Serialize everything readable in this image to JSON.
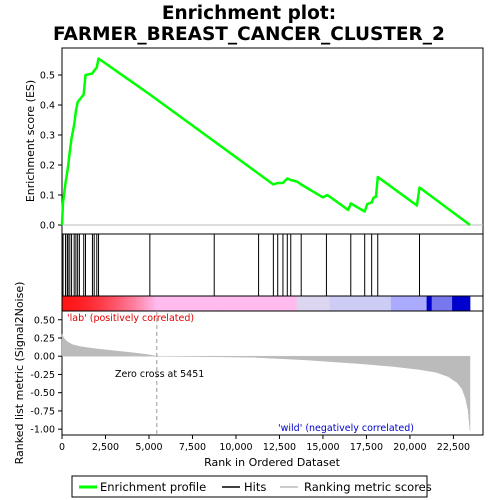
{
  "chart_data": {
    "type": "line",
    "title_lines": [
      "Enrichment plot:",
      "FARMER_BREAST_CANCER_CLUSTER_2"
    ],
    "xlabel": "Rank in Ordered Dataset",
    "xlim": [
      0,
      24200
    ],
    "x_ticks": [
      0,
      2500,
      5000,
      7500,
      10000,
      12500,
      15000,
      17500,
      20000,
      22500
    ],
    "x_tick_labels": [
      "0",
      "2,500",
      "5,000",
      "7,500",
      "10,000",
      "12,500",
      "15,000",
      "17,500",
      "20,000",
      "22,500"
    ],
    "top_panel": {
      "ylabel": "Enrichment score (ES)",
      "ylim": [
        -0.03,
        0.59
      ],
      "y_ticks": [
        0.0,
        0.1,
        0.2,
        0.3,
        0.4,
        0.5
      ],
      "y_tick_labels": [
        "0.0",
        "0.1",
        "0.2",
        "0.3",
        "0.4",
        "0.5"
      ],
      "series": {
        "name": "Enrichment profile",
        "color": "#00ff00",
        "points": [
          [
            0,
            0
          ],
          [
            60,
            0.075
          ],
          [
            200,
            0.14
          ],
          [
            350,
            0.195
          ],
          [
            450,
            0.245
          ],
          [
            550,
            0.29
          ],
          [
            700,
            0.335
          ],
          [
            800,
            0.38
          ],
          [
            900,
            0.41
          ],
          [
            1250,
            0.435
          ],
          [
            1350,
            0.5
          ],
          [
            1750,
            0.505
          ],
          [
            1850,
            0.515
          ],
          [
            2000,
            0.525
          ],
          [
            2100,
            0.555
          ],
          [
            5050,
            0.435
          ],
          [
            12150,
            0.135
          ],
          [
            12400,
            0.14
          ],
          [
            12700,
            0.14
          ],
          [
            12950,
            0.155
          ],
          [
            13150,
            0.15
          ],
          [
            13500,
            0.145
          ],
          [
            13750,
            0.135
          ],
          [
            15000,
            0.092
          ],
          [
            15250,
            0.1
          ],
          [
            15500,
            0.09
          ],
          [
            16450,
            0.05
          ],
          [
            16600,
            0.072
          ],
          [
            17400,
            0.045
          ],
          [
            17550,
            0.07
          ],
          [
            17800,
            0.075
          ],
          [
            17900,
            0.09
          ],
          [
            18050,
            0.095
          ],
          [
            18150,
            0.16
          ],
          [
            20400,
            0.065
          ],
          [
            20550,
            0.125
          ],
          [
            23450,
            0.0
          ]
        ]
      }
    },
    "hits": {
      "name": "Hits",
      "color": "#000000",
      "ranks": [
        60,
        200,
        300,
        350,
        450,
        550,
        700,
        800,
        900,
        1000,
        1250,
        1350,
        1750,
        1850,
        2000,
        2100,
        5050,
        8750,
        11300,
        12150,
        12400,
        12700,
        12950,
        13150,
        13750,
        15200,
        16600,
        17400,
        17800,
        18150,
        20550
      ]
    },
    "ranking_bar": {
      "colors": [
        "#ff0000",
        "#ffbbee",
        "#cccccc",
        "#aaaaff",
        "#0000cc"
      ]
    },
    "bottom_panel": {
      "ylabel": "Ranked list metric (Signal2Noise)",
      "ylim": [
        -1.08,
        0.62
      ],
      "y_ticks": [
        0.5,
        0.25,
        0.0,
        -0.25,
        -0.5,
        -0.75,
        -1.0
      ],
      "y_tick_labels": [
        "0.50",
        "0.25",
        "0.00",
        "-0.25",
        "-0.50",
        "-0.75",
        "-1.00"
      ],
      "series": {
        "name": "Ranking metric scores",
        "color": "#bbbbbb",
        "points": [
          [
            0,
            0.3
          ],
          [
            100,
            0.25
          ],
          [
            300,
            0.2
          ],
          [
            600,
            0.16
          ],
          [
            1000,
            0.135
          ],
          [
            1500,
            0.115
          ],
          [
            2000,
            0.1
          ],
          [
            3000,
            0.075
          ],
          [
            4000,
            0.05
          ],
          [
            5000,
            0.02
          ],
          [
            5451,
            0.0
          ],
          [
            8000,
            -0.005
          ],
          [
            11000,
            -0.015
          ],
          [
            14000,
            -0.05
          ],
          [
            17000,
            -0.1
          ],
          [
            19000,
            -0.14
          ],
          [
            20500,
            -0.18
          ],
          [
            21500,
            -0.22
          ],
          [
            22200,
            -0.28
          ],
          [
            22700,
            -0.36
          ],
          [
            23000,
            -0.45
          ],
          [
            23200,
            -0.58
          ],
          [
            23350,
            -0.75
          ],
          [
            23450,
            -1.02
          ]
        ]
      },
      "zero_cross_label": "Zero cross at 5451",
      "zero_cross_x": 5451,
      "pos_label": "'lab' (positively correlated)",
      "neg_label": "'wild' (negatively correlated)"
    },
    "legend": {
      "enrichment": "Enrichment profile",
      "hits": "Hits",
      "ranking": "Ranking metric scores"
    }
  }
}
